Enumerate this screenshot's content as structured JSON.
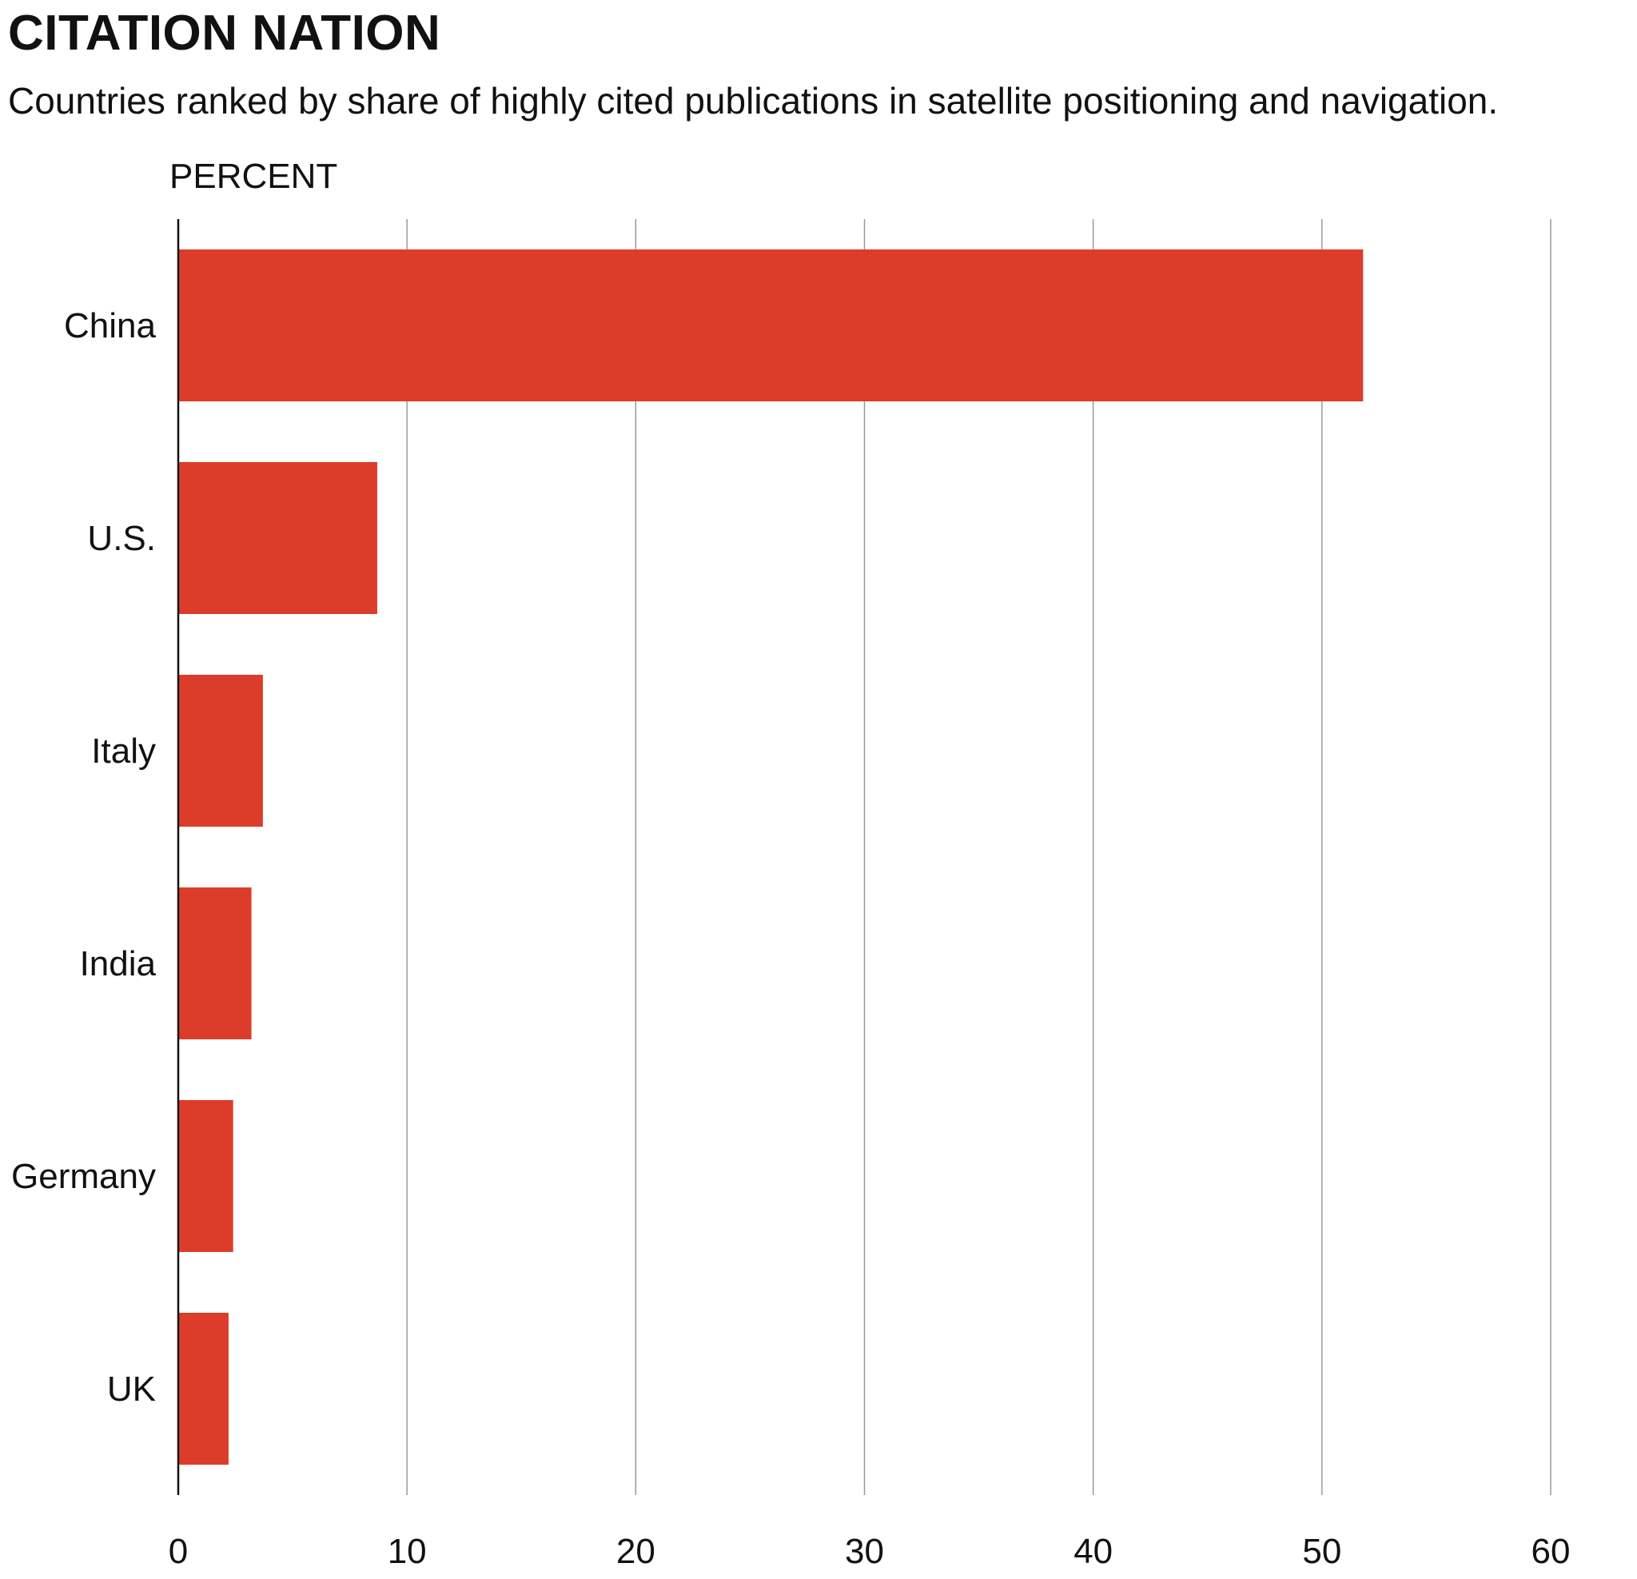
{
  "header": {
    "title": "CITATION NATION",
    "subtitle": "Countries ranked by share of highly cited publications in satellite positioning and navigation."
  },
  "chart_data": {
    "type": "bar",
    "orientation": "horizontal",
    "categories": [
      "China",
      "U.S.",
      "Italy",
      "India",
      "Germany",
      "UK"
    ],
    "values": [
      51.8,
      8.7,
      3.7,
      3.2,
      2.4,
      2.2
    ],
    "unit_label": "PERCENT",
    "xlim": [
      0,
      60
    ],
    "xticks": [
      0,
      10,
      20,
      30,
      40,
      50,
      60
    ],
    "grid": "vertical",
    "bar_color": "#dc3d2a",
    "grid_color": "#999999"
  }
}
